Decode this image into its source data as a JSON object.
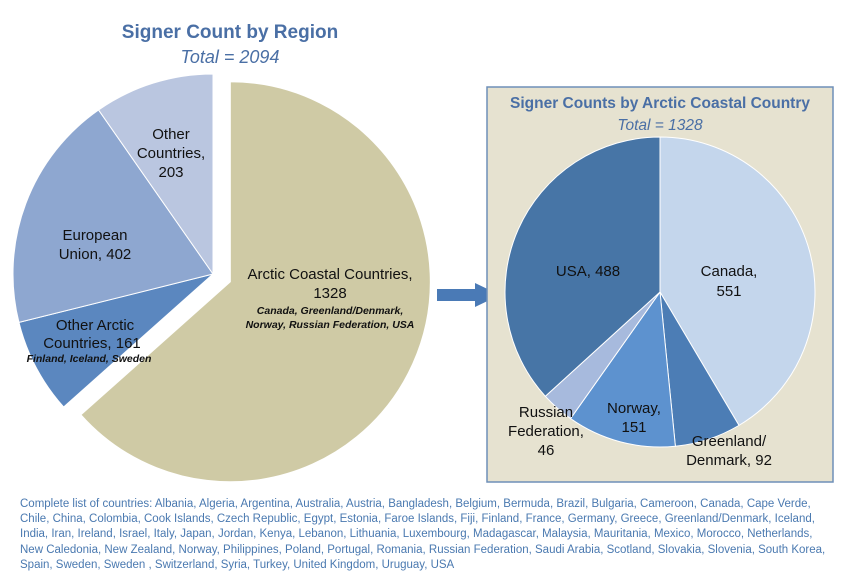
{
  "chart_data": [
    {
      "type": "pie",
      "title": "Signer Count by Region",
      "subtitle": "Total = 2094",
      "slices": [
        {
          "key": "arctic",
          "label": "Arctic Coastal Countries,",
          "value_label": "1328",
          "value": 1328,
          "note": [
            "Canada, Greenland/Denmark,",
            "Norway, Russian Federation, USA"
          ],
          "color": "#cfcaa5",
          "exploded": true
        },
        {
          "key": "other_arctic",
          "label": "Other Arctic",
          "value_label": "Countries, 161",
          "value": 161,
          "note": [
            "Finland, Iceland, Sweden"
          ],
          "color": "#5b87bf"
        },
        {
          "key": "eu",
          "label": "European",
          "value_label": "Union, 402",
          "value": 402,
          "color": "#8ea7d0"
        },
        {
          "key": "other",
          "label": "Other",
          "label2": "Countries,",
          "value_label": "203",
          "value": 203,
          "color": "#bac6e0"
        }
      ]
    },
    {
      "type": "pie",
      "title": "Signer Counts by Arctic Coastal Country",
      "subtitle": "Total = 1328",
      "slices": [
        {
          "key": "canada",
          "label": "Canada,",
          "value_label": "551",
          "value": 551,
          "color": "#c4d6ec"
        },
        {
          "key": "greenland",
          "label": "Greenland/",
          "value_label": "Denmark, 92",
          "value": 92,
          "color": "#4c7db5"
        },
        {
          "key": "norway",
          "label": "Norway,",
          "value_label": "151",
          "value": 151,
          "color": "#5d92cf"
        },
        {
          "key": "russia",
          "label": "Russian",
          "label2": "Federation,",
          "value_label": "46",
          "value": 46,
          "color": "#a7badd"
        },
        {
          "key": "usa",
          "label": "USA, 488",
          "value": 488,
          "color": "#4775a6"
        }
      ]
    }
  ],
  "inset_background": "#e6e2d0",
  "inset_border": "#6f8fb8",
  "arrow_color": "#4a7ab6",
  "footnote": "Complete list of countries: Albania, Algeria, Argentina, Australia, Austria, Bangladesh, Belgium, Bermuda, Brazil, Bulgaria, Cameroon, Canada, Cape Verde, Chile, China, Colombia, Cook Islands, Czech Republic, Egypt, Estonia, Faroe Islands, Fiji, Finland, France, Germany, Greece, Greenland/Denmark, Iceland, India, Iran, Ireland, Israel, Italy, Japan, Jordan, Kenya, Lebanon, Lithuania, Luxembourg, Madagascar, Malaysia, Mauritania, Mexico, Morocco, Netherlands, New Caledonia, New Zealand, Norway, Philippines, Poland, Portugal, Romania, Russian Federation, Saudi Arabia, Scotland, Slovakia, Slovenia, South Korea, Spain, Sweden, Sweden , Switzerland, Syria, Turkey, United Kingdom, Uruguay, USA"
}
